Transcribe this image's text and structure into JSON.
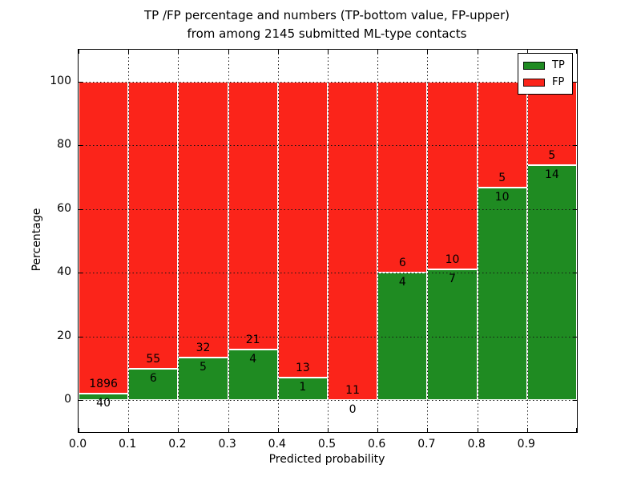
{
  "chart_data": {
    "type": "bar",
    "stacked": true,
    "normalized_to_percent": true,
    "title_lines": [
      "TP /FP percentage and numbers (TP-bottom value, FP-upper)",
      "from among 2145 submitted ML-type contacts"
    ],
    "xlabel": "Predicted probability",
    "ylabel": "Percentage",
    "total_contacts": 2145,
    "bin_edges": [
      0.0,
      0.1,
      0.2,
      0.3,
      0.4,
      0.5,
      0.6,
      0.7,
      0.8,
      0.9,
      1.0
    ],
    "xtick_labels": [
      "0.0",
      "0.1",
      "0.2",
      "0.3",
      "0.4",
      "0.5",
      "0.6",
      "0.7",
      "0.8",
      "0.9"
    ],
    "ytick_values": [
      0,
      20,
      40,
      60,
      80,
      100
    ],
    "ylim": [
      -10,
      110
    ],
    "grid": true,
    "legend_position": "upper right",
    "series": [
      {
        "name": "TP",
        "color": "#1f8b22",
        "counts": [
          40,
          6,
          5,
          4,
          1,
          0,
          4,
          7,
          10,
          14
        ]
      },
      {
        "name": "FP",
        "color": "#fb241a",
        "counts": [
          1896,
          55,
          32,
          21,
          13,
          11,
          6,
          10,
          5,
          5
        ]
      }
    ],
    "tp_percent_per_bin": [
      2.07,
      9.84,
      13.51,
      16.0,
      7.14,
      0.0,
      40.0,
      41.18,
      66.67,
      73.68
    ]
  }
}
